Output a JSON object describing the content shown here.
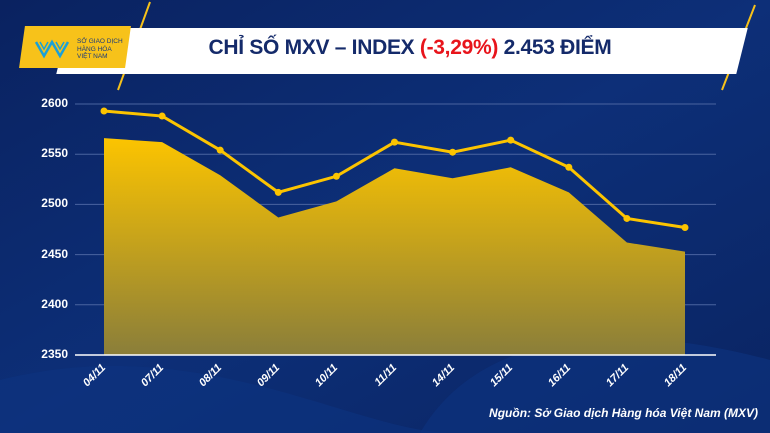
{
  "header": {
    "title_prefix": "CHỈ SỐ MXV – INDEX ",
    "title_change": "(-3,29%)",
    "title_suffix": " 2.453 ĐIỂM"
  },
  "logo": {
    "line1": "SỞ GIAO DỊCH",
    "line2": "HÀNG HÓA",
    "line3": "VIỆT NAM"
  },
  "colors": {
    "accent": "#f7c21a",
    "background": "#0b2a6e",
    "negative": "#e8141b"
  },
  "chart_data": {
    "type": "area",
    "title": "CHỈ SỐ MXV – INDEX (-3,29%) 2.453 ĐIỂM",
    "categories": [
      "04/11",
      "07/11",
      "08/11",
      "09/11",
      "10/11",
      "11/11",
      "14/11",
      "15/11",
      "16/11",
      "17/11",
      "18/11"
    ],
    "series": [
      {
        "name": "MXV-Index (area)",
        "values": [
          2566,
          2562,
          2529,
          2487,
          2503,
          2536,
          2526,
          2537,
          2512,
          2462,
          2453
        ]
      },
      {
        "name": "MXV-Index (line)",
        "values": [
          2593,
          2588,
          2554,
          2512,
          2528,
          2562,
          2552,
          2564,
          2537,
          2486,
          2477
        ]
      }
    ],
    "yticks": [
      2350,
      2400,
      2450,
      2500,
      2550,
      2600
    ],
    "ylim": [
      2350,
      2600
    ],
    "grid": true
  },
  "source": "Nguồn: Sở Giao dịch Hàng hóa Việt Nam (MXV)"
}
